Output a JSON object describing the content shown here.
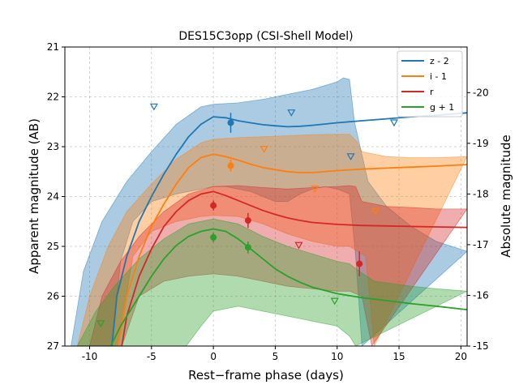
{
  "chart_data": {
    "type": "line",
    "title": "DES15C3opp (CSI-Shell Model)",
    "xlabel": "Rest−frame phase (days)",
    "ylabel": "Apparent magnitude (AB)",
    "ylabel_right": "Absolute magnitude",
    "xlim": [
      -12,
      20.5
    ],
    "ylim": [
      27,
      21
    ],
    "ylim_right": [
      -15,
      -20.9
    ],
    "x_ticks": [
      -10,
      -5,
      0,
      5,
      10,
      15,
      20
    ],
    "y_ticks": [
      21,
      22,
      23,
      24,
      25,
      26,
      27
    ],
    "y_ticks_right": [
      -20,
      -19,
      -18,
      -17,
      -16,
      -15
    ],
    "grid": true,
    "legend_position": "top-right",
    "series": [
      {
        "name": "z - 2",
        "color": "#1f77b4",
        "model": [
          [
            -8.2,
            27
          ],
          [
            -7.8,
            26.0
          ],
          [
            -7,
            25.2
          ],
          [
            -6,
            24.5
          ],
          [
            -5,
            24.0
          ],
          [
            -4,
            23.55
          ],
          [
            -3,
            23.15
          ],
          [
            -2,
            22.8
          ],
          [
            -1,
            22.55
          ],
          [
            0,
            22.4
          ],
          [
            1,
            22.42
          ],
          [
            2,
            22.48
          ],
          [
            3,
            22.52
          ],
          [
            4,
            22.56
          ],
          [
            5,
            22.58
          ],
          [
            6,
            22.6
          ],
          [
            7,
            22.59
          ],
          [
            8,
            22.57
          ],
          [
            10,
            22.52
          ],
          [
            12,
            22.48
          ],
          [
            14,
            22.44
          ],
          [
            16,
            22.4
          ],
          [
            18,
            22.37
          ],
          [
            20.5,
            22.32
          ]
        ],
        "band_upper": [
          [
            -11.5,
            27
          ],
          [
            -10.5,
            25.5
          ],
          [
            -9,
            24.5
          ],
          [
            -7,
            23.7
          ],
          [
            -5,
            23.1
          ],
          [
            -3,
            22.55
          ],
          [
            -1,
            22.2
          ],
          [
            0,
            22.15
          ],
          [
            2,
            22.12
          ],
          [
            4,
            22.05
          ],
          [
            6,
            21.95
          ],
          [
            8,
            21.85
          ],
          [
            10,
            21.7
          ],
          [
            10.5,
            21.62
          ],
          [
            11,
            21.65
          ],
          [
            11.4,
            22.5
          ],
          [
            12.5,
            23.7
          ],
          [
            14,
            24.2
          ],
          [
            16,
            24.6
          ],
          [
            18,
            24.9
          ],
          [
            20.5,
            25.1
          ]
        ],
        "band_lower": [
          [
            -8.2,
            27
          ],
          [
            -7.5,
            25.3
          ],
          [
            -6.5,
            24.5
          ],
          [
            -5,
            24.1
          ],
          [
            -3,
            23.95
          ],
          [
            -1,
            23.85
          ],
          [
            0,
            23.8
          ],
          [
            1,
            23.8
          ],
          [
            2,
            23.85
          ],
          [
            3,
            23.9
          ],
          [
            4,
            24.0
          ],
          [
            5,
            24.1
          ],
          [
            6,
            24.1
          ],
          [
            7,
            23.95
          ],
          [
            8,
            23.85
          ],
          [
            9,
            23.8
          ],
          [
            10,
            23.85
          ],
          [
            11,
            23.95
          ],
          [
            11.5,
            25.2
          ],
          [
            12,
            27
          ]
        ],
        "detections": [
          {
            "x": 1.4,
            "y": 22.52,
            "err": 0.2
          }
        ],
        "upper_limits": [
          {
            "x": -4.8,
            "y": 22.2
          },
          {
            "x": 6.3,
            "y": 22.32
          },
          {
            "x": 11.1,
            "y": 23.2
          },
          {
            "x": 14.6,
            "y": 22.52
          }
        ]
      },
      {
        "name": "i - 1",
        "color": "#ff7f0e",
        "model": [
          [
            -7.7,
            27
          ],
          [
            -7,
            26.0
          ],
          [
            -6,
            25.2
          ],
          [
            -5,
            24.6
          ],
          [
            -4,
            24.15
          ],
          [
            -3,
            23.75
          ],
          [
            -2,
            23.42
          ],
          [
            -1,
            23.22
          ],
          [
            0,
            23.15
          ],
          [
            1,
            23.2
          ],
          [
            2,
            23.27
          ],
          [
            3,
            23.35
          ],
          [
            4,
            23.42
          ],
          [
            5,
            23.46
          ],
          [
            6,
            23.5
          ],
          [
            7,
            23.52
          ],
          [
            8,
            23.52
          ],
          [
            10,
            23.48
          ],
          [
            12,
            23.45
          ],
          [
            14,
            23.43
          ],
          [
            16,
            23.41
          ],
          [
            18,
            23.39
          ],
          [
            20.5,
            23.36
          ]
        ],
        "band_upper": [
          [
            -11,
            27
          ],
          [
            -10,
            26.0
          ],
          [
            -8.5,
            25.0
          ],
          [
            -7,
            24.3
          ],
          [
            -5,
            23.75
          ],
          [
            -3,
            23.25
          ],
          [
            -1,
            22.92
          ],
          [
            0,
            22.85
          ],
          [
            2,
            22.82
          ],
          [
            4,
            22.8
          ],
          [
            6,
            22.78
          ],
          [
            8,
            22.76
          ],
          [
            10,
            22.75
          ],
          [
            11,
            22.75
          ],
          [
            11.6,
            22.9
          ],
          [
            12,
            23.1
          ],
          [
            14,
            23.2
          ],
          [
            16,
            23.22
          ],
          [
            18,
            23.22
          ],
          [
            20.5,
            23.2
          ]
        ],
        "band_lower": [
          [
            -7.7,
            27
          ],
          [
            -6.5,
            25.2
          ],
          [
            -5,
            24.7
          ],
          [
            -3,
            24.5
          ],
          [
            -1,
            24.4
          ],
          [
            0,
            24.38
          ],
          [
            2,
            24.4
          ],
          [
            4,
            24.55
          ],
          [
            6,
            24.75
          ],
          [
            8,
            24.9
          ],
          [
            10,
            25.0
          ],
          [
            11,
            25.0
          ],
          [
            12.3,
            25.2
          ],
          [
            13,
            27
          ]
        ],
        "detections": [
          {
            "x": 1.4,
            "y": 23.38,
            "err": 0.12
          }
        ],
        "upper_limits": [
          {
            "x": 4.1,
            "y": 23.05
          },
          {
            "x": 8.2,
            "y": 23.85
          },
          {
            "x": 13.1,
            "y": 24.3
          }
        ]
      },
      {
        "name": "r",
        "color": "#d62728",
        "model": [
          [
            -7.4,
            27
          ],
          [
            -7,
            26.4
          ],
          [
            -6,
            25.6
          ],
          [
            -5,
            25.05
          ],
          [
            -4,
            24.6
          ],
          [
            -3,
            24.3
          ],
          [
            -2,
            24.08
          ],
          [
            -1,
            23.95
          ],
          [
            0,
            23.9
          ],
          [
            1,
            23.98
          ],
          [
            2,
            24.08
          ],
          [
            3,
            24.18
          ],
          [
            4,
            24.28
          ],
          [
            5,
            24.36
          ],
          [
            6,
            24.43
          ],
          [
            7,
            24.48
          ],
          [
            8,
            24.52
          ],
          [
            10,
            24.56
          ],
          [
            12,
            24.58
          ],
          [
            14,
            24.59
          ],
          [
            16,
            24.6
          ],
          [
            18,
            24.61
          ],
          [
            20.5,
            24.62
          ]
        ],
        "band_upper": [
          [
            -10,
            27
          ],
          [
            -9,
            26.0
          ],
          [
            -7.5,
            25.3
          ],
          [
            -6,
            24.8
          ],
          [
            -4,
            24.3
          ],
          [
            -2,
            23.95
          ],
          [
            0,
            23.8
          ],
          [
            2,
            23.78
          ],
          [
            4,
            23.82
          ],
          [
            6,
            23.85
          ],
          [
            8,
            23.82
          ],
          [
            10,
            23.8
          ],
          [
            11,
            23.78
          ],
          [
            11.5,
            23.8
          ],
          [
            12,
            24.1
          ],
          [
            14,
            24.2
          ],
          [
            16,
            24.22
          ],
          [
            18,
            24.25
          ],
          [
            20.5,
            24.25
          ]
        ],
        "band_lower": [
          [
            -7.4,
            27
          ],
          [
            -6,
            26.0
          ],
          [
            -4,
            25.7
          ],
          [
            -2,
            25.6
          ],
          [
            0,
            25.55
          ],
          [
            2,
            25.6
          ],
          [
            4,
            25.7
          ],
          [
            6,
            25.8
          ],
          [
            8,
            25.85
          ],
          [
            10,
            25.9
          ],
          [
            11,
            25.9
          ],
          [
            12,
            26.0
          ],
          [
            12.8,
            27
          ]
        ],
        "detections": [
          {
            "x": 0.0,
            "y": 24.18,
            "err": 0.1
          },
          {
            "x": 2.8,
            "y": 24.48,
            "err": 0.15
          },
          {
            "x": 11.8,
            "y": 25.35,
            "err": 0.25
          }
        ],
        "upper_limits": [
          {
            "x": 6.9,
            "y": 24.98
          }
        ]
      },
      {
        "name": "g + 1",
        "color": "#2ca02c",
        "model": [
          [
            -8.3,
            27
          ],
          [
            -7.5,
            26.6
          ],
          [
            -6,
            26.0
          ],
          [
            -5,
            25.6
          ],
          [
            -4,
            25.25
          ],
          [
            -3,
            24.98
          ],
          [
            -2,
            24.8
          ],
          [
            -1,
            24.7
          ],
          [
            0,
            24.65
          ],
          [
            1,
            24.7
          ],
          [
            2,
            24.85
          ],
          [
            3,
            25.05
          ],
          [
            4,
            25.25
          ],
          [
            5,
            25.45
          ],
          [
            6,
            25.6
          ],
          [
            7,
            25.72
          ],
          [
            8,
            25.82
          ],
          [
            10,
            25.95
          ],
          [
            12,
            26.03
          ],
          [
            14,
            26.09
          ],
          [
            16,
            26.15
          ],
          [
            18,
            26.2
          ],
          [
            20.5,
            26.27
          ]
        ],
        "band_upper": [
          [
            -11,
            27
          ],
          [
            -9.5,
            26.3
          ],
          [
            -8,
            25.8
          ],
          [
            -6,
            25.25
          ],
          [
            -4,
            24.85
          ],
          [
            -2,
            24.55
          ],
          [
            0,
            24.45
          ],
          [
            2,
            24.55
          ],
          [
            4,
            24.8
          ],
          [
            6,
            25.0
          ],
          [
            8,
            25.15
          ],
          [
            10,
            25.3
          ],
          [
            11,
            25.35
          ],
          [
            11.8,
            25.5
          ],
          [
            13,
            25.7
          ],
          [
            16,
            25.8
          ],
          [
            18,
            25.85
          ],
          [
            20.5,
            25.9
          ]
        ],
        "band_lower": [
          [
            -2.2,
            27
          ],
          [
            -1,
            26.6
          ],
          [
            0,
            26.3
          ],
          [
            2,
            26.2
          ],
          [
            4,
            26.3
          ],
          [
            6,
            26.4
          ],
          [
            8,
            26.5
          ],
          [
            10,
            26.6
          ],
          [
            11,
            26.8
          ],
          [
            11.5,
            27
          ]
        ],
        "detections": [
          {
            "x": 0.0,
            "y": 24.82,
            "err": 0.1
          },
          {
            "x": 2.8,
            "y": 25.02,
            "err": 0.12
          }
        ],
        "upper_limits": [
          {
            "x": -9.1,
            "y": 26.55
          },
          {
            "x": 9.8,
            "y": 26.1
          }
        ]
      }
    ]
  }
}
